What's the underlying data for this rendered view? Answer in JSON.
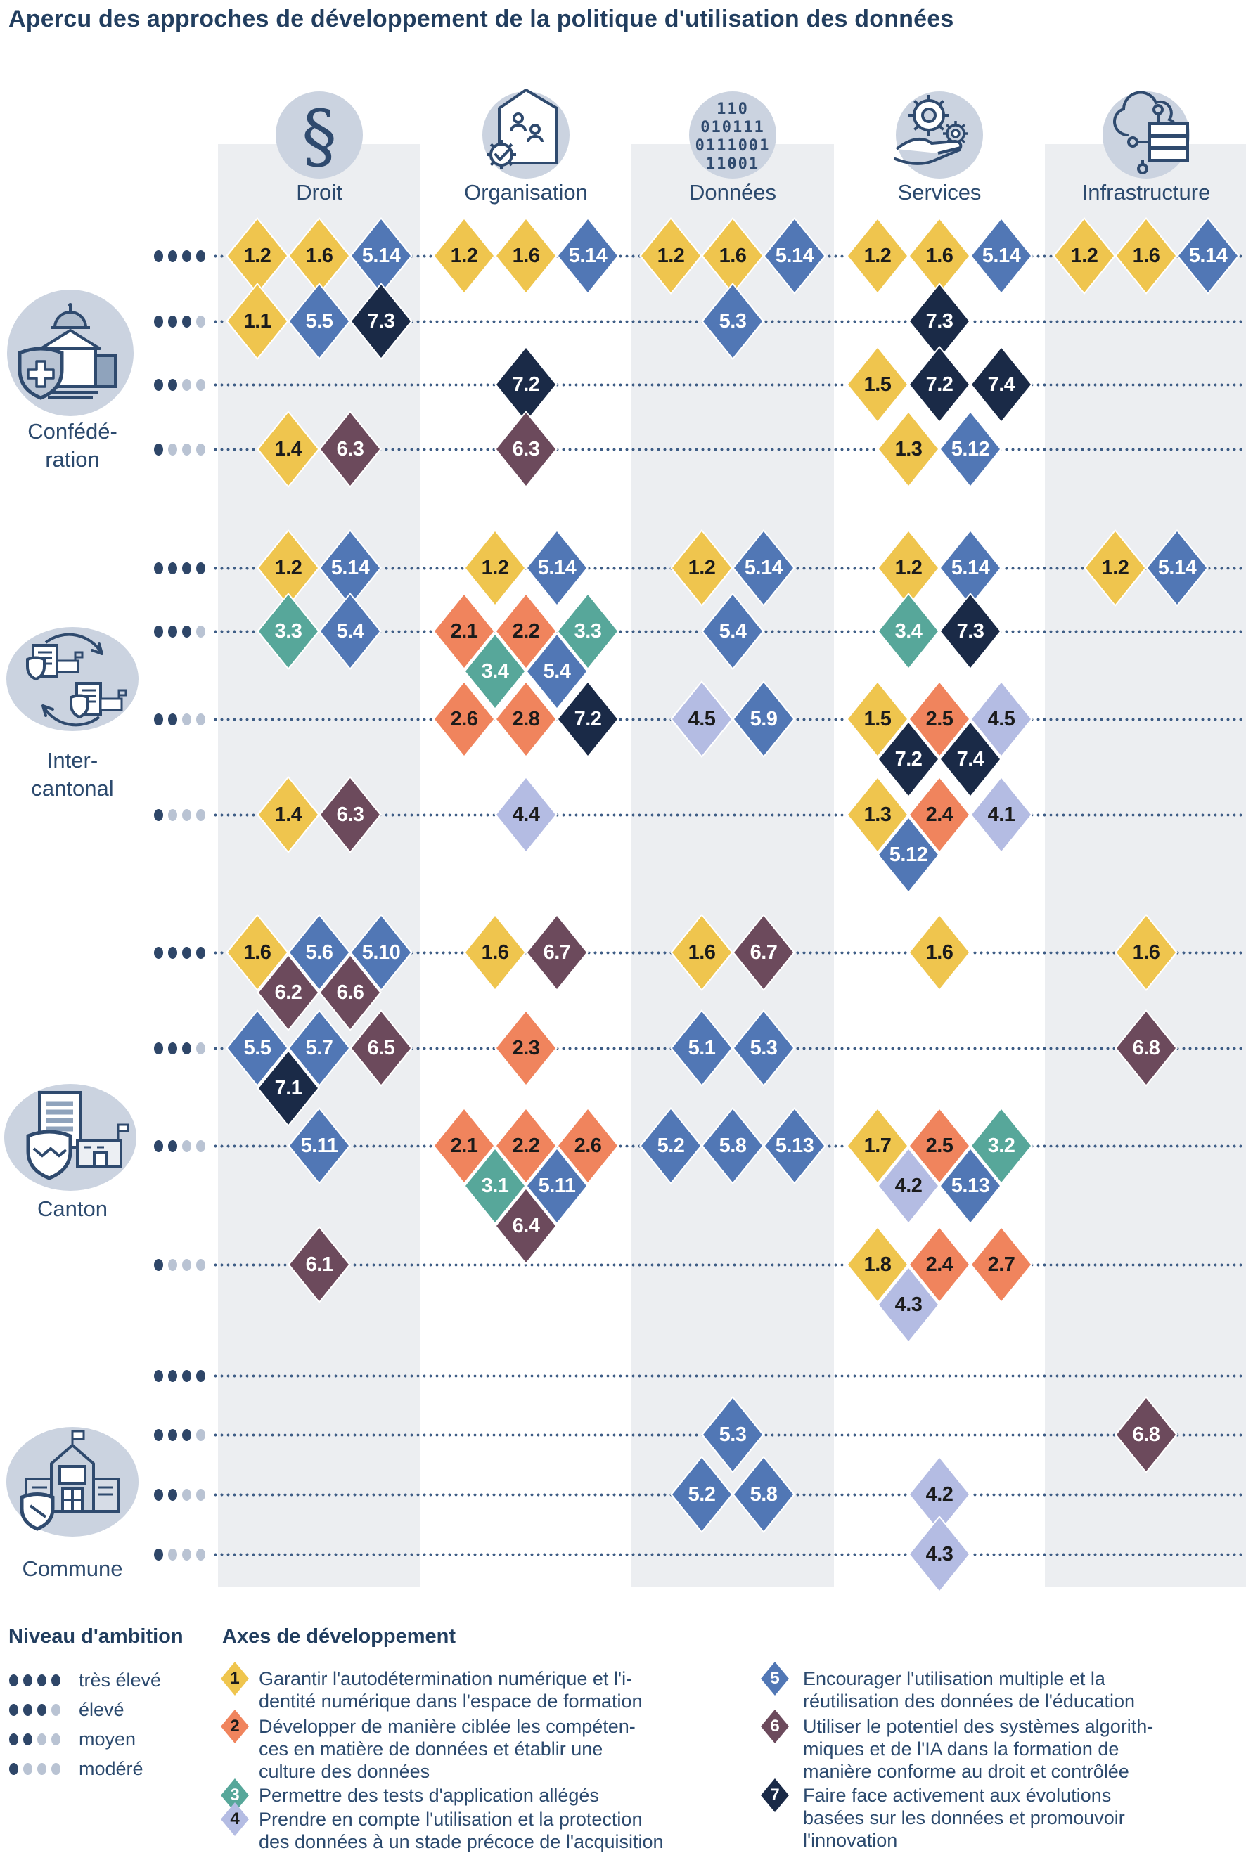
{
  "title": "Apercu des approches de développement de la politique d'utilisation des données",
  "columns": [
    {
      "id": "droit",
      "label": "Droit",
      "icon": "section-sign-icon"
    },
    {
      "id": "organisation",
      "label": "Organisation",
      "icon": "organisation-house-icon"
    },
    {
      "id": "donnees",
      "label": "Données",
      "icon": "binary-data-icon"
    },
    {
      "id": "services",
      "label": "Services",
      "icon": "hand-gears-icon"
    },
    {
      "id": "infrastructure",
      "label": "Infrastructure",
      "icon": "cloud-server-icon"
    }
  ],
  "donnees_icon_lines": [
    "110",
    "010111",
    "0111001",
    "11001"
  ],
  "axes_colors": {
    "1": {
      "fill": "#EFC54E",
      "text": "#1b1b1b"
    },
    "2": {
      "fill": "#F0845D",
      "text": "#1b1b1b"
    },
    "3": {
      "fill": "#57A79A",
      "text": "#ffffff"
    },
    "4": {
      "fill": "#B4BCE3",
      "text": "#1b1b1b"
    },
    "5": {
      "fill": "#5177B5",
      "text": "#ffffff"
    },
    "6": {
      "fill": "#6C4A5C",
      "text": "#ffffff"
    },
    "7": {
      "fill": "#1A2A47",
      "text": "#ffffff"
    }
  },
  "legend": {
    "ambition_heading": "Niveau d'ambition",
    "axes_heading": "Axes de développement"
  },
  "ambition_levels": [
    {
      "label": "très élevé",
      "dark_dots": 4
    },
    {
      "label": "élevé",
      "dark_dots": 3
    },
    {
      "label": "moyen",
      "dark_dots": 2
    },
    {
      "label": "modéré",
      "dark_dots": 1
    }
  ],
  "axes_legend": [
    {
      "num": "1",
      "lines": [
        "Garantir l'autodétermination numérique et l'i-",
        "dentité numérique dans l'espace de formation"
      ]
    },
    {
      "num": "2",
      "lines": [
        "Développer de manière ciblée les compéten-",
        "ces en matière de données et établir une",
        "culture des données"
      ]
    },
    {
      "num": "3",
      "lines": [
        "Permettre des tests d'application allégés"
      ]
    },
    {
      "num": "4",
      "lines": [
        "Prendre en compte l'utilisation et la protection",
        "des données à un stade précoce de l'acquisition"
      ]
    },
    {
      "num": "5",
      "lines": [
        "Encourager l'utilisation multiple et la",
        "réutilisation des données de l'éducation"
      ]
    },
    {
      "num": "6",
      "lines": [
        "Utiliser le potentiel des systèmes algorith-",
        "miques et de l'IA dans la formation de",
        "manière conforme au droit et contrôlée"
      ]
    },
    {
      "num": "7",
      "lines": [
        "Faire face activement aux évolutions",
        "basées sur les données et promouvoir",
        "l'innovation"
      ]
    }
  ],
  "groups": [
    {
      "id": "confederation",
      "label_lines": [
        "Confédé-",
        "ration"
      ],
      "icon": "federal-building-icon",
      "rows": [
        {
          "level": "très élevé",
          "cells": {
            "droit": [
              [
                "1.2",
                "1.6",
                "5.14"
              ]
            ],
            "organisation": [
              [
                "1.2",
                "1.6",
                "5.14"
              ]
            ],
            "donnees": [
              [
                "1.2",
                "1.6",
                "5.14"
              ]
            ],
            "services": [
              [
                "1.2",
                "1.6",
                "5.14"
              ]
            ],
            "infrastructure": [
              [
                "1.2",
                "1.6",
                "5.14"
              ]
            ]
          }
        },
        {
          "level": "élevé",
          "cells": {
            "droit": [
              [
                "1.1",
                "5.5",
                "7.3"
              ]
            ],
            "donnees": [
              [
                "5.3"
              ]
            ],
            "services": [
              [
                "7.3"
              ]
            ]
          }
        },
        {
          "level": "moyen",
          "cells": {
            "organisation": [
              [
                "7.2"
              ]
            ],
            "services": [
              [
                "1.5",
                "7.2",
                "7.4"
              ]
            ]
          }
        },
        {
          "level": "modéré",
          "cells": {
            "droit": [
              [
                "1.4",
                "6.3"
              ]
            ],
            "organisation": [
              [
                "6.3"
              ]
            ],
            "services": [
              [
                "1.3",
                "5.12"
              ]
            ]
          }
        }
      ]
    },
    {
      "id": "intercantonal",
      "label_lines": [
        "Inter-",
        "cantonal"
      ],
      "icon": "exchange-documents-icon",
      "rows": [
        {
          "level": "très élevé",
          "cells": {
            "droit": [
              [
                "1.2",
                "5.14"
              ]
            ],
            "organisation": [
              [
                "1.2",
                "5.14"
              ]
            ],
            "donnees": [
              [
                "1.2",
                "5.14"
              ]
            ],
            "services": [
              [
                "1.2",
                "5.14"
              ]
            ],
            "infrastructure": [
              [
                "1.2",
                "5.14"
              ]
            ]
          }
        },
        {
          "level": "élevé",
          "cells": {
            "droit": [
              [
                "3.3",
                "5.4"
              ]
            ],
            "organisation": [
              [
                "2.1",
                "2.2",
                "3.3"
              ],
              [
                "3.4",
                "5.4"
              ]
            ],
            "donnees": [
              [
                "5.4"
              ]
            ],
            "services": [
              [
                "3.4",
                "7.3"
              ]
            ]
          }
        },
        {
          "level": "moyen",
          "cells": {
            "organisation": [
              [
                "2.6",
                "2.8",
                "7.2"
              ]
            ],
            "donnees": [
              [
                "4.5",
                "5.9"
              ]
            ],
            "services": [
              [
                "1.5",
                "2.5",
                "4.5"
              ],
              [
                "7.2",
                "7.4"
              ]
            ]
          }
        },
        {
          "level": "modéré",
          "cells": {
            "droit": [
              [
                "1.4",
                "6.3"
              ]
            ],
            "organisation": [
              [
                "4.4"
              ]
            ],
            "services": [
              [
                "1.3",
                "2.4",
                "4.1"
              ],
              [
                "5.12",
                null
              ]
            ]
          }
        }
      ]
    },
    {
      "id": "canton",
      "label_lines": [
        "Canton"
      ],
      "icon": "canton-building-icon",
      "rows": [
        {
          "level": "très élevé",
          "cells": {
            "droit": [
              [
                "1.6",
                "5.6",
                "5.10"
              ],
              [
                "6.2",
                "6.6"
              ]
            ],
            "organisation": [
              [
                "1.6",
                "6.7"
              ]
            ],
            "donnees": [
              [
                "1.6",
                "6.7"
              ]
            ],
            "services": [
              [
                "1.6"
              ]
            ],
            "infrastructure": [
              [
                "1.6"
              ]
            ]
          }
        },
        {
          "level": "élevé",
          "cells": {
            "droit": [
              [
                "5.5",
                "5.7",
                "6.5"
              ],
              [
                "7.1",
                null
              ]
            ],
            "organisation": [
              [
                "2.3"
              ]
            ],
            "donnees": [
              [
                "5.1",
                "5.3"
              ]
            ],
            "infrastructure": [
              [
                "6.8"
              ]
            ]
          }
        },
        {
          "level": "moyen",
          "cells": {
            "droit": [
              [
                "5.11"
              ]
            ],
            "organisation": [
              [
                "2.1",
                "2.2",
                "2.6"
              ],
              [
                "3.1",
                "5.11"
              ],
              [
                "6.4"
              ]
            ],
            "donnees": [
              [
                "5.2",
                "5.8",
                "5.13"
              ]
            ],
            "services": [
              [
                "1.7",
                "2.5",
                "3.2"
              ],
              [
                "4.2",
                "5.13"
              ]
            ]
          }
        },
        {
          "level": "modéré",
          "cells": {
            "droit": [
              [
                "6.1"
              ]
            ],
            "services": [
              [
                "1.8",
                "2.4",
                "2.7"
              ],
              [
                "4.3",
                null
              ]
            ]
          }
        }
      ]
    },
    {
      "id": "commune",
      "label_lines": [
        "Commune"
      ],
      "icon": "school-building-icon",
      "rows": [
        {
          "level": "très élevé",
          "cells": {}
        },
        {
          "level": "élevé",
          "cells": {
            "donnees": [
              [
                "5.3"
              ]
            ],
            "infrastructure": [
              [
                "6.8"
              ]
            ]
          }
        },
        {
          "level": "moyen",
          "cells": {
            "donnees": [
              [
                "5.2",
                "5.8"
              ]
            ],
            "services": [
              [
                "4.2"
              ]
            ]
          }
        },
        {
          "level": "modéré",
          "cells": {
            "services": [
              [
                "4.3"
              ]
            ]
          }
        }
      ]
    }
  ]
}
